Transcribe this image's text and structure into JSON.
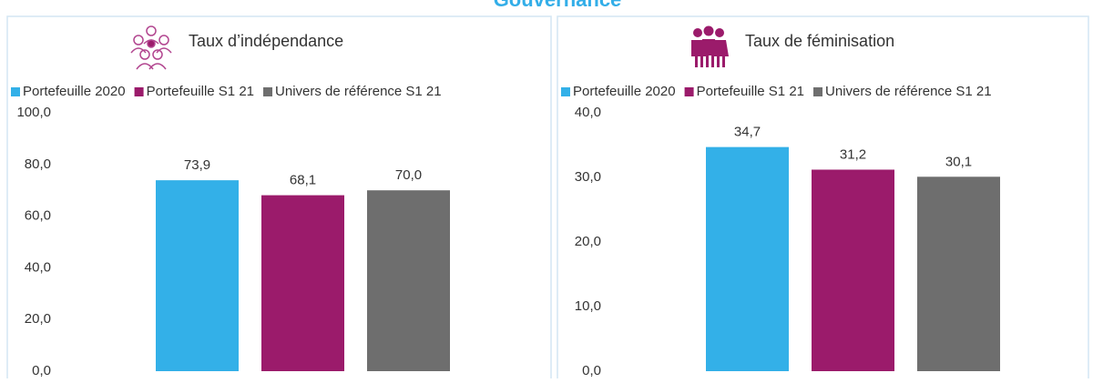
{
  "header": {
    "title": "Gouvernance"
  },
  "chart_data": [
    {
      "type": "bar",
      "title": "Taux d’indépendance",
      "categories": [
        null
      ],
      "series": [
        {
          "name": "Portefeuille 2020",
          "color": "#33b0e8",
          "values": [
            73.9
          ],
          "value_labels": [
            "73,9"
          ]
        },
        {
          "name": "Portefeuille S1 21",
          "color": "#9b1b6b",
          "values": [
            68.1
          ],
          "value_labels": [
            "68,1"
          ]
        },
        {
          "name": "Univers de référence S1 21",
          "color": "#6e6e6e",
          "values": [
            70.0
          ],
          "value_labels": [
            "70,0"
          ]
        }
      ],
      "ylim": [
        0,
        100
      ],
      "yticks": [
        {
          "value": 0,
          "label": "0,0"
        },
        {
          "value": 20,
          "label": "20,0"
        },
        {
          "value": 40,
          "label": "40,0"
        },
        {
          "value": 60,
          "label": "60,0"
        },
        {
          "value": 80,
          "label": "80,0"
        },
        {
          "value": 100,
          "label": "100,0"
        }
      ],
      "grid": false,
      "legend": "top"
    },
    {
      "type": "bar",
      "title": "Taux de féminisation",
      "categories": [
        null
      ],
      "series": [
        {
          "name": "Portefeuille 2020",
          "color": "#33b0e8",
          "values": [
            34.7
          ],
          "value_labels": [
            "34,7"
          ]
        },
        {
          "name": "Portefeuille S1 21",
          "color": "#9b1b6b",
          "values": [
            31.2
          ],
          "value_labels": [
            "31,2"
          ]
        },
        {
          "name": "Univers de référence S1 21",
          "color": "#6e6e6e",
          "values": [
            30.1
          ],
          "value_labels": [
            "30,1"
          ]
        }
      ],
      "ylim": [
        0,
        40
      ],
      "yticks": [
        {
          "value": 0,
          "label": "0,0"
        },
        {
          "value": 10,
          "label": "10,0"
        },
        {
          "value": 20,
          "label": "20,0"
        },
        {
          "value": 30,
          "label": "30,0"
        },
        {
          "value": 40,
          "label": "40,0"
        }
      ],
      "grid": false,
      "legend": "top"
    }
  ]
}
